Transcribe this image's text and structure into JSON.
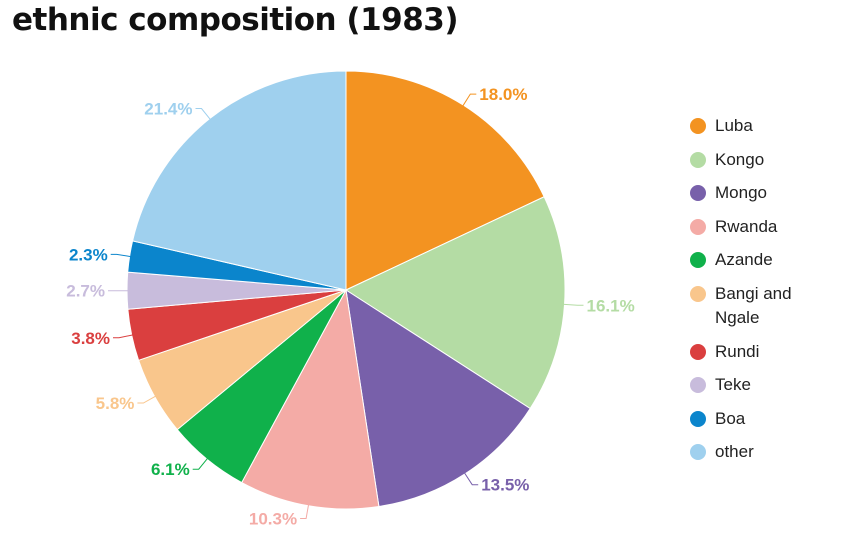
{
  "chart_data": {
    "type": "pie",
    "title": "ethnic composition (1983)",
    "slices": [
      {
        "label": "Luba",
        "value": 18.0,
        "value_label": "18.0%",
        "color": "#f39321"
      },
      {
        "label": "Kongo",
        "value": 16.1,
        "value_label": "16.1%",
        "color": "#b4dca4"
      },
      {
        "label": "Mongo",
        "value": 13.5,
        "value_label": "13.5%",
        "color": "#7860aa"
      },
      {
        "label": "Rwanda",
        "value": 10.3,
        "value_label": "10.3%",
        "color": "#f4aba6"
      },
      {
        "label": "Azande",
        "value": 6.1,
        "value_label": "6.1%",
        "color": "#10b14b"
      },
      {
        "label": "Bangi and Ngale",
        "value": 5.8,
        "value_label": "5.8%",
        "color": "#f9c68c"
      },
      {
        "label": "Rundi",
        "value": 3.8,
        "value_label": "3.8%",
        "color": "#da3f3f"
      },
      {
        "label": "Teke",
        "value": 2.7,
        "value_label": "2.7%",
        "color": "#c8bcdc"
      },
      {
        "label": "Boa",
        "value": 2.3,
        "value_label": "2.3%",
        "color": "#0b85cc"
      },
      {
        "label": "other",
        "value": 21.4,
        "value_label": "21.4%",
        "color": "#9fd0ee"
      }
    ],
    "legend_position": "right"
  }
}
